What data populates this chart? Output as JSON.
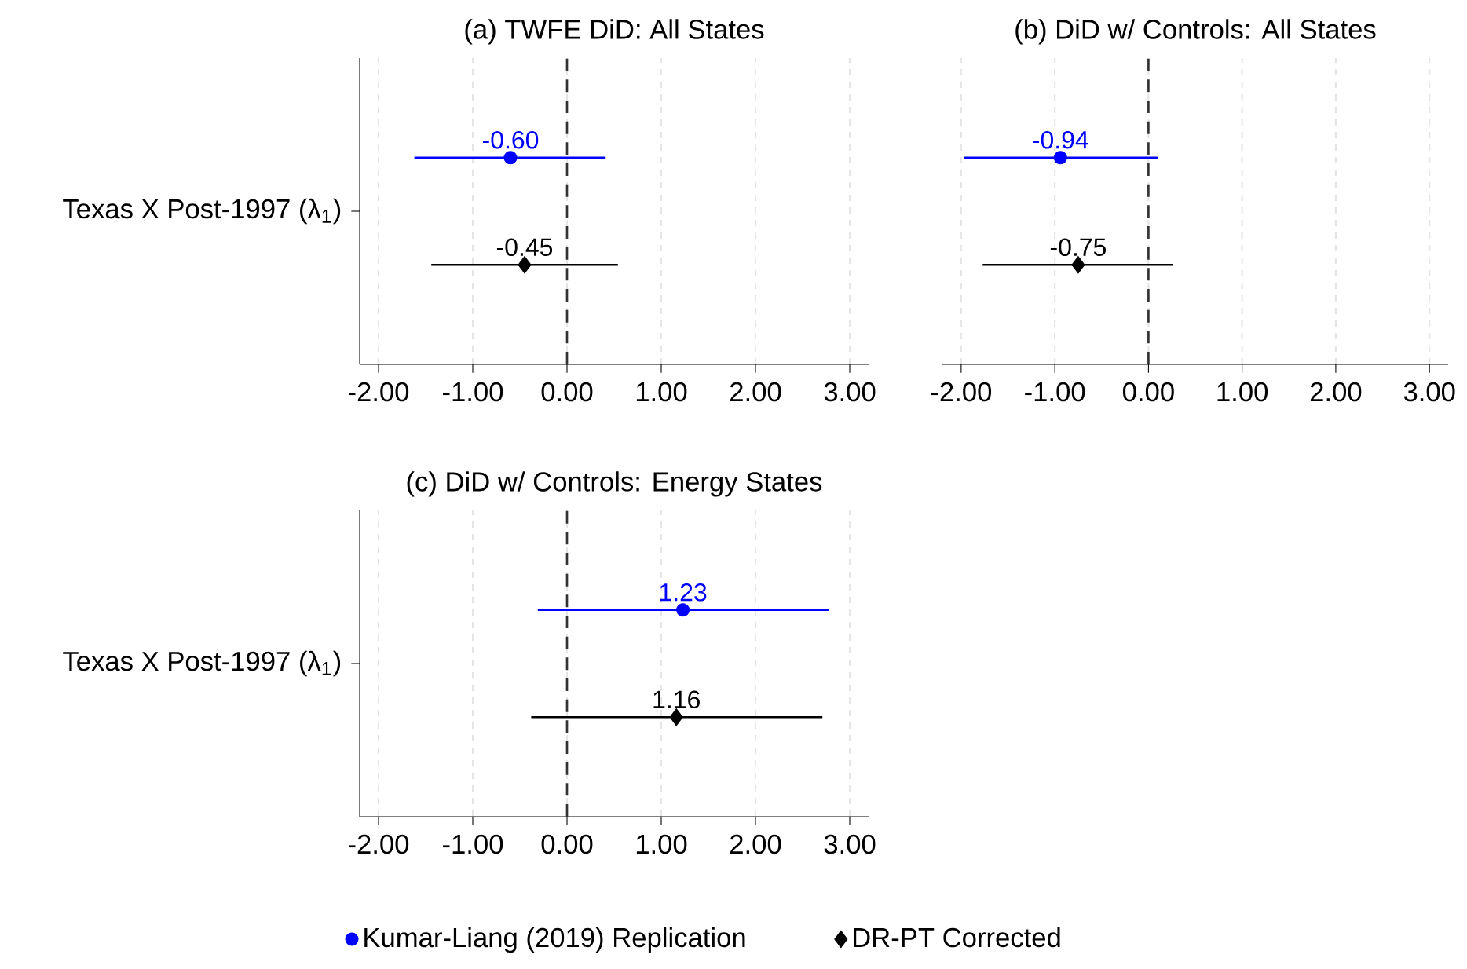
{
  "chart_data": [
    {
      "type": "scatter",
      "orientation": "horizontal",
      "title": "(a) TWFE DiD: All States",
      "categories": [
        "Texas X Post-1997 (λ$_{1}$)"
      ],
      "series": [
        {
          "color": "#0000ff",
          "marker": "circle",
          "values": [
            -0.6
          ],
          "errors": [
            [
              -1.62,
              0.41
            ]
          ],
          "value_labels": [
            "-0.60"
          ]
        },
        {
          "color": "#000000",
          "marker": "diamond",
          "values": [
            -0.45
          ],
          "errors": [
            [
              -1.44,
              0.54
            ]
          ],
          "value_labels": [
            "-0.45"
          ]
        }
      ],
      "xlim": [
        -2.2,
        3.2
      ],
      "xticks": [
        {
          "value": -2,
          "label": "-2.00"
        },
        {
          "value": -1,
          "label": "-1.00"
        },
        {
          "value": 0,
          "label": "0.00"
        },
        {
          "value": 1,
          "label": "1.00"
        },
        {
          "value": 2,
          "label": "2.00"
        },
        {
          "value": 3,
          "label": "3.00"
        }
      ],
      "grid": "x",
      "ref_lines": [
        {
          "axis": "x",
          "value": 0,
          "line_style": "dashed",
          "color": "#333333"
        }
      ]
    },
    {
      "type": "scatter",
      "orientation": "horizontal",
      "title": "(b) DiD w/ Controls: All States",
      "categories": [
        null
      ],
      "series": [
        {
          "color": "#0000ff",
          "marker": "circle",
          "values": [
            -0.94
          ],
          "errors": [
            [
              -1.97,
              0.1
            ]
          ],
          "value_labels": [
            "-0.94"
          ]
        },
        {
          "color": "#000000",
          "marker": "diamond",
          "values": [
            -0.75
          ],
          "errors": [
            [
              -1.77,
              0.26
            ]
          ],
          "value_labels": [
            "-0.75"
          ]
        }
      ],
      "xlim": [
        -2.2,
        3.2
      ],
      "xticks": [
        {
          "value": -2,
          "label": "-2.00"
        },
        {
          "value": -1,
          "label": "-1.00"
        },
        {
          "value": 0,
          "label": "0.00"
        },
        {
          "value": 1,
          "label": "1.00"
        },
        {
          "value": 2,
          "label": "2.00"
        },
        {
          "value": 3,
          "label": "3.00"
        }
      ],
      "grid": "x",
      "tick_labels": "x",
      "ref_lines": [
        {
          "axis": "x",
          "value": 0,
          "line_style": "dashed",
          "color": "#333333"
        }
      ]
    },
    {
      "type": "scatter",
      "orientation": "horizontal",
      "title": "(c) DiD w/ Controls: Energy States",
      "categories": [
        "Texas X Post-1997 (λ$_{1}$)"
      ],
      "series": [
        {
          "name": "Kumar-Liang (2019) Replication",
          "color": "#0000ff",
          "marker": "circle",
          "values": [
            1.23
          ],
          "errors": [
            [
              -0.31,
              2.78
            ]
          ],
          "value_labels": [
            "1.23"
          ]
        },
        {
          "name": "DR-PT Corrected",
          "color": "#000000",
          "marker": "diamond",
          "values": [
            1.16
          ],
          "errors": [
            [
              -0.38,
              2.71
            ]
          ],
          "value_labels": [
            "1.16"
          ]
        }
      ],
      "xlim": [
        -2.2,
        3.2
      ],
      "xticks": [
        {
          "value": -2,
          "label": "-2.00"
        },
        {
          "value": -1,
          "label": "-1.00"
        },
        {
          "value": 0,
          "label": "0.00"
        },
        {
          "value": 1,
          "label": "1.00"
        },
        {
          "value": 2,
          "label": "2.00"
        },
        {
          "value": 3,
          "label": "3.00"
        }
      ],
      "grid": "x",
      "legend": "bottom",
      "ref_lines": [
        {
          "axis": "x",
          "value": 0,
          "line_style": "dashed",
          "color": "#333333"
        }
      ]
    }
  ]
}
